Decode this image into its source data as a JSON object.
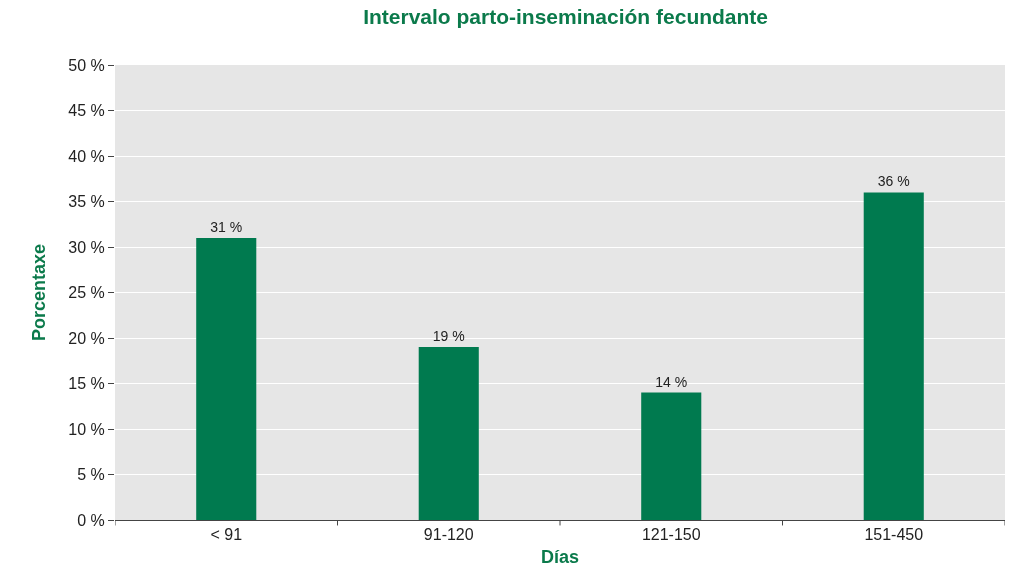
{
  "chart_data": {
    "type": "bar",
    "title": "Intervalo parto-inseminación fecundante",
    "xlabel": "Días",
    "ylabel": "Porcentaxe",
    "categories": [
      "< 91",
      "91-120",
      "121-150",
      "151-450"
    ],
    "values": [
      31,
      19,
      14,
      36
    ],
    "value_labels": [
      "31 %",
      "19 %",
      "14 %",
      "36 %"
    ],
    "color": "#007a4f",
    "ylim": [
      0,
      50
    ],
    "yticks": [
      {
        "value": 0,
        "label": "0 %"
      },
      {
        "value": 5,
        "label": "5 %"
      },
      {
        "value": 10,
        "label": "10 %"
      },
      {
        "value": 15,
        "label": "15 %"
      },
      {
        "value": 20,
        "label": "20 %"
      },
      {
        "value": 25,
        "label": "25 %"
      },
      {
        "value": 30,
        "label": "30 %"
      },
      {
        "value": 35,
        "label": "35 %"
      },
      {
        "value": 40,
        "label": "40 %"
      },
      {
        "value": 45,
        "label": "45 %"
      },
      {
        "value": 50,
        "label": "50 %"
      }
    ],
    "grid": "y"
  }
}
